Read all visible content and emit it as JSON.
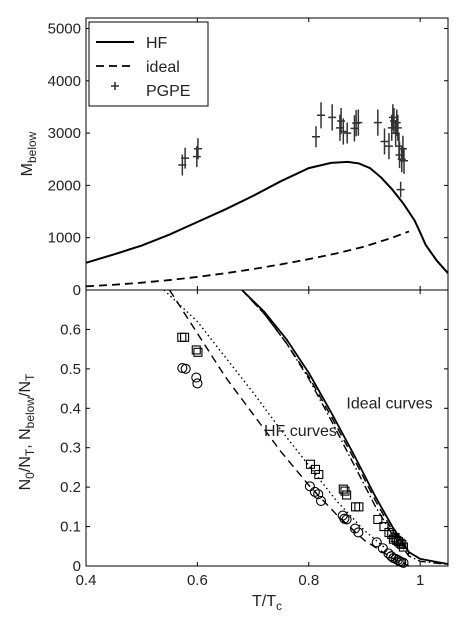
{
  "chart_data": [
    {
      "type": "line",
      "xlim": [
        0.4,
        1.05
      ],
      "ylim": [
        0,
        5200
      ],
      "xlabel": "",
      "ylabel": "M_below",
      "ylabel_main": "M",
      "ylabel_sub": "below",
      "yticks": [
        0,
        1000,
        2000,
        3000,
        4000,
        5000
      ],
      "grid": false,
      "legend_placement": "top-left",
      "legend": [
        {
          "label": "HF",
          "style": "solid"
        },
        {
          "label": "ideal",
          "style": "dashed"
        },
        {
          "label": "PGPE",
          "style": "plus"
        }
      ],
      "series": [
        {
          "name": "HF",
          "style": "solid",
          "x": [
            0.4,
            0.45,
            0.5,
            0.55,
            0.6,
            0.65,
            0.7,
            0.75,
            0.8,
            0.84,
            0.87,
            0.89,
            0.91,
            0.93,
            0.95,
            0.97,
            0.99,
            1.0,
            1.01,
            1.03,
            1.05
          ],
          "y": [
            520,
            680,
            850,
            1060,
            1300,
            1540,
            1800,
            2080,
            2330,
            2430,
            2450,
            2420,
            2330,
            2150,
            1920,
            1650,
            1330,
            1100,
            860,
            560,
            320
          ]
        },
        {
          "name": "ideal",
          "style": "dashed",
          "x": [
            0.4,
            0.45,
            0.5,
            0.55,
            0.6,
            0.65,
            0.7,
            0.75,
            0.8,
            0.85,
            0.9,
            0.95,
            0.98
          ],
          "y": [
            70,
            100,
            140,
            190,
            250,
            320,
            400,
            490,
            590,
            700,
            830,
            1000,
            1120
          ]
        },
        {
          "name": "PGPE",
          "style": "plus",
          "x": [
            0.573,
            0.578,
            0.599,
            0.601,
            0.813,
            0.822,
            0.842,
            0.856,
            0.858,
            0.862,
            0.869,
            0.882,
            0.885,
            0.889,
            0.924,
            0.936,
            0.944,
            0.949,
            0.951,
            0.953,
            0.956,
            0.958,
            0.96,
            0.962,
            0.963,
            0.965,
            0.967,
            0.969,
            0.971
          ],
          "y": [
            2390,
            2520,
            2550,
            2700,
            2930,
            3340,
            3300,
            3100,
            3230,
            3030,
            3000,
            3090,
            3190,
            3200,
            3200,
            2840,
            2750,
            3100,
            3300,
            3230,
            3000,
            3200,
            3100,
            2750,
            2580,
            1920,
            2500,
            2700,
            2470
          ],
          "err": [
            200,
            200,
            200,
            200,
            200,
            250,
            250,
            250,
            250,
            250,
            200,
            250,
            250,
            250,
            250,
            250,
            250,
            250,
            250,
            250,
            250,
            250,
            250,
            250,
            250,
            150,
            250,
            250,
            250
          ]
        }
      ]
    },
    {
      "type": "scatter",
      "xlim": [
        0.4,
        1.05
      ],
      "ylim": [
        0,
        0.7
      ],
      "xlabel": "T/T_c",
      "xlabel_main": "T/T",
      "xlabel_sub": "c",
      "ylabel": "N_0/N_T, N_below/N_T",
      "xticks": [
        0.4,
        0.6,
        0.8,
        1
      ],
      "xtick_labels": [
        "0.4",
        "0.6",
        "0.8",
        "1"
      ],
      "yticks": [
        0,
        0.1,
        0.2,
        0.3,
        0.4,
        0.5,
        0.6
      ],
      "grid": false,
      "annotations": [
        {
          "text": "HF curves",
          "x": 0.785,
          "y": 0.33
        },
        {
          "text": "Ideal curves",
          "x": 0.945,
          "y": 0.4
        }
      ],
      "series": [
        {
          "name": "",
          "style": "dashed",
          "x": [
            0.55,
            0.6,
            0.65,
            0.7,
            0.75,
            0.8,
            0.85,
            0.9,
            0.95,
            0.98
          ],
          "y": [
            0.7,
            0.59,
            0.48,
            0.385,
            0.29,
            0.205,
            0.13,
            0.065,
            0.02,
            0.0
          ]
        },
        {
          "name": "",
          "style": "dotted",
          "x": [
            0.54,
            0.6,
            0.65,
            0.7,
            0.75,
            0.8,
            0.85,
            0.9,
            0.95,
            0.98
          ],
          "y": [
            0.7,
            0.62,
            0.53,
            0.44,
            0.345,
            0.255,
            0.165,
            0.09,
            0.03,
            0.0
          ]
        },
        {
          "name": "",
          "style": "solid",
          "x": [
            0.68,
            0.72,
            0.76,
            0.8,
            0.84,
            0.88,
            0.92,
            0.95,
            0.98,
            1.0,
            1.05
          ],
          "y": [
            0.7,
            0.645,
            0.575,
            0.49,
            0.39,
            0.285,
            0.175,
            0.1,
            0.035,
            0.018,
            0.005
          ]
        },
        {
          "name": "",
          "style": "dashdot",
          "x": [
            0.68,
            0.72,
            0.76,
            0.8,
            0.84,
            0.88,
            0.92,
            0.95,
            0.98,
            1.0,
            1.05
          ],
          "y": [
            0.7,
            0.64,
            0.565,
            0.475,
            0.37,
            0.26,
            0.15,
            0.08,
            0.025,
            0.012,
            0.004
          ]
        },
        {
          "name": "",
          "style": "dashed",
          "x": [
            0.68,
            0.72,
            0.76,
            0.8,
            0.84,
            0.88,
            0.92,
            0.95,
            0.98
          ],
          "y": [
            0.7,
            0.64,
            0.565,
            0.48,
            0.38,
            0.275,
            0.165,
            0.09,
            0.03
          ]
        },
        {
          "name": "",
          "style": "square",
          "x": [
            0.572,
            0.577,
            0.598,
            0.601,
            0.803,
            0.812,
            0.818,
            0.862,
            0.865,
            0.868,
            0.884,
            0.89,
            0.924,
            0.935,
            0.944,
            0.949,
            0.952,
            0.955,
            0.958,
            0.961,
            0.964,
            0.967,
            0.97
          ],
          "y": [
            0.58,
            0.58,
            0.548,
            0.542,
            0.258,
            0.245,
            0.232,
            0.195,
            0.19,
            0.18,
            0.15,
            0.15,
            0.118,
            0.1,
            0.085,
            0.08,
            0.068,
            0.072,
            0.065,
            0.062,
            0.058,
            0.055,
            0.048
          ]
        },
        {
          "name": "",
          "style": "circle",
          "x": [
            0.573,
            0.579,
            0.598,
            0.6,
            0.802,
            0.811,
            0.817,
            0.822,
            0.861,
            0.864,
            0.868,
            0.883,
            0.889,
            0.922,
            0.933,
            0.943,
            0.948,
            0.952,
            0.956,
            0.96,
            0.963,
            0.966,
            0.97
          ],
          "y": [
            0.502,
            0.5,
            0.478,
            0.463,
            0.202,
            0.188,
            0.182,
            0.165,
            0.128,
            0.12,
            0.118,
            0.095,
            0.085,
            0.06,
            0.045,
            0.032,
            0.025,
            0.02,
            0.018,
            0.015,
            0.012,
            0.01,
            0.008
          ]
        }
      ]
    }
  ]
}
